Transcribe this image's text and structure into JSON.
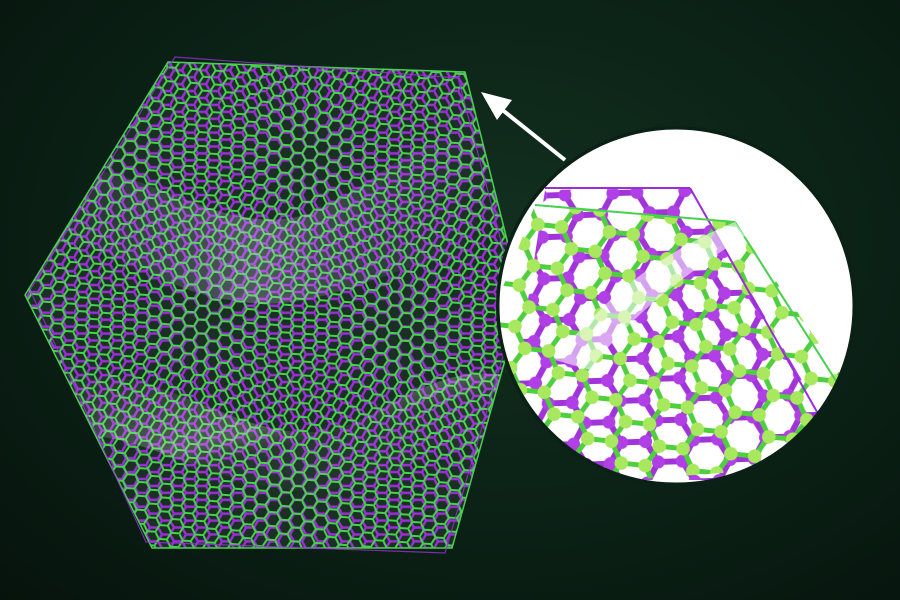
{
  "image": {
    "subject": "bilayer-hexagonal-lattice-sheet",
    "layers": [
      {
        "name": "bottom-layer",
        "color": "#9a2fd6"
      },
      {
        "name": "top-layer",
        "color": "#47d14e",
        "node_color": "#a4e65a"
      }
    ],
    "background_color": "#0b2116",
    "inset": {
      "background_color": "#ffffff",
      "border_color": "#0b2116"
    },
    "arrow": {
      "color": "#ffffff",
      "points_to": "sheet-corner"
    }
  }
}
